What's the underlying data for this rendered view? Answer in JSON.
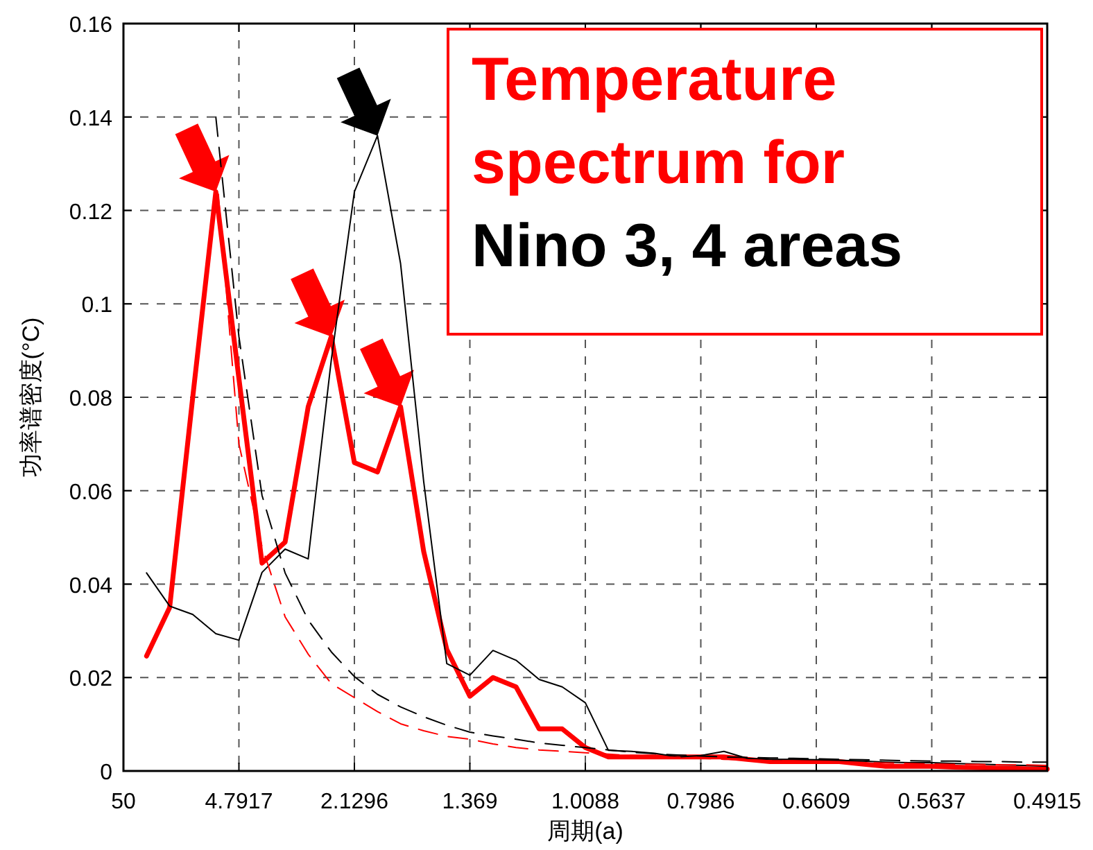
{
  "chart_data": {
    "type": "line",
    "title": "Temperature spectrum for",
    "subtitle": "Nino 3, 4 areas",
    "xlabel": "周期(a)",
    "ylabel": "功率谱密度(°C)",
    "categories": [
      "50",
      null,
      null,
      null,
      null,
      "4.7917",
      null,
      null,
      null,
      null,
      "2.1296",
      null,
      null,
      null,
      null,
      "1.369",
      null,
      null,
      null,
      null,
      "1.0088",
      null,
      null,
      null,
      null,
      "0.7986",
      null,
      null,
      null,
      null,
      "0.6609",
      null,
      null,
      null,
      null,
      "0.5637",
      null,
      null,
      null,
      null,
      "0.4915"
    ],
    "series": [
      {
        "color": "#ff0000",
        "line_style": "solid",
        "values": [
          null,
          0.0246,
          0.035,
          0.08,
          0.124,
          0.084,
          0.0445,
          0.049,
          0.078,
          0.093,
          0.066,
          0.064,
          0.078,
          0.047,
          0.026,
          0.016,
          0.02,
          0.018,
          0.009,
          0.009,
          0.005,
          0.003,
          0.003,
          0.003,
          0.003,
          0.003,
          0.003,
          0.0025,
          0.002,
          0.002,
          0.002,
          0.002,
          0.0015,
          0.001,
          0.001,
          0.001,
          0.0008,
          0.0007,
          0.0006,
          0.0005,
          0.0004
        ]
      },
      {
        "color": "#000000",
        "line_style": "solid",
        "values": [
          null,
          0.0424,
          0.0353,
          0.0335,
          0.0294,
          0.028,
          0.0425,
          0.0475,
          0.0454,
          0.088,
          0.124,
          0.136,
          0.1086,
          0.062,
          0.023,
          0.0205,
          0.0258,
          0.0237,
          0.0196,
          0.018,
          0.0146,
          0.0044,
          0.0042,
          0.0038,
          0.003,
          0.0033,
          0.0042,
          0.0027,
          0.0025,
          0.0025,
          0.0024,
          0.0023,
          0.0021,
          0.0019,
          0.0018,
          0.0018,
          0.0016,
          0.0015,
          0.0013,
          0.0012,
          0.001
        ]
      },
      {
        "color": "#000000",
        "line_style": "dashed",
        "values": [
          null,
          null,
          null,
          null,
          0.14,
          0.093,
          0.059,
          0.0424,
          0.0323,
          0.0255,
          0.0202,
          0.0164,
          0.0137,
          0.0116,
          0.0098,
          0.0083,
          0.0075,
          0.0068,
          0.006,
          0.0055,
          0.005,
          0.0045,
          0.004,
          0.0037,
          0.0034,
          0.0032,
          0.003,
          0.0029,
          0.0028,
          0.0027,
          0.0026,
          0.0025,
          0.0024,
          0.0023,
          0.0022,
          0.0021,
          0.0021,
          0.002,
          0.002,
          0.0019,
          0.0019
        ]
      },
      {
        "color": "#ff0000",
        "line_style": "dashed",
        "values": [
          null,
          null,
          null,
          null,
          0.13,
          0.07,
          0.048,
          0.033,
          0.025,
          0.0187,
          0.0157,
          0.0127,
          0.0101,
          0.0086,
          0.0074,
          0.0068,
          0.0058,
          0.005,
          0.0045,
          0.0042,
          0.0039,
          0.0036,
          0.0033,
          0.0031,
          0.0029,
          0.0027,
          0.0025,
          0.0024,
          0.0022,
          0.0021,
          0.002,
          0.0019,
          0.0018,
          0.0017,
          0.0016,
          0.0015,
          0.0014,
          0.0014,
          0.0013,
          0.0013,
          0.0012
        ]
      }
    ],
    "ylim": [
      0,
      0.16
    ],
    "yticks": [
      0,
      0.02,
      0.04,
      0.06,
      0.08,
      0.1,
      0.12,
      0.14,
      0.16
    ],
    "grid": true,
    "marker": "none"
  }
}
